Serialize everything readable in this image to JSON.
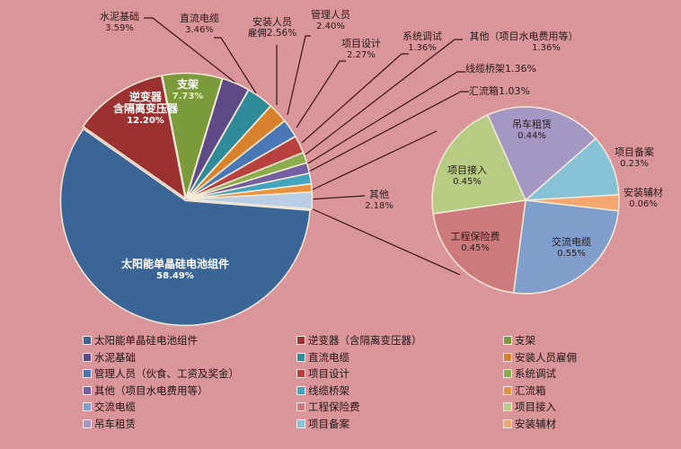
{
  "chart_data": [
    {
      "type": "pie",
      "title": "",
      "name": "main-pie",
      "slices": [
        {
          "label": "支架",
          "value": 7.73,
          "color": "#7a9a3c"
        },
        {
          "label": "水泥基础",
          "value": 3.59,
          "color": "#5e4a86"
        },
        {
          "label": "直流电缆",
          "value": 3.46,
          "color": "#2f8a9a"
        },
        {
          "label": "安装人员雇佣",
          "value": 2.56,
          "color": "#d8822e"
        },
        {
          "label": "管理人员",
          "value": 2.4,
          "color": "#4a78b6"
        },
        {
          "label": "项目设计",
          "value": 2.27,
          "color": "#b8403e"
        },
        {
          "label": "系统调试",
          "value": 1.36,
          "color": "#8cad4c"
        },
        {
          "label": "其他（项目水电费用等）",
          "value": 1.36,
          "color": "#7460a0"
        },
        {
          "label": "线缆桥架",
          "value": 1.36,
          "color": "#41a6bd"
        },
        {
          "label": "汇流箱",
          "value": 1.03,
          "color": "#e8913e"
        },
        {
          "label": "其他",
          "value": 2.18,
          "color": "#b9cde4"
        },
        {
          "label": "太阳能单晶硅电池组件",
          "value": 58.49,
          "color": "#3a6596"
        },
        {
          "label": "逆变器 含隔离变压器",
          "value": 12.2,
          "color": "#9b3231"
        }
      ]
    },
    {
      "type": "pie",
      "title": "",
      "name": "breakdown-of-other-2.18%",
      "slices": [
        {
          "label": "吊车租赁",
          "value": 0.44,
          "color": "#a597c4"
        },
        {
          "label": "项目备案",
          "value": 0.23,
          "color": "#86c2d5"
        },
        {
          "label": "安装辅材",
          "value": 0.06,
          "color": "#f4a66e"
        },
        {
          "label": "交流电缆",
          "value": 0.55,
          "color": "#7f9ecb"
        },
        {
          "label": "工程保险费",
          "value": 0.45,
          "color": "#cd7a7c"
        },
        {
          "label": "项目接入",
          "value": 0.45,
          "color": "#b5cc82"
        }
      ]
    }
  ],
  "labels": {
    "solar": {
      "name": "太阳能单晶硅电池组件",
      "pct": "58.49%"
    },
    "inverter": {
      "name1": "逆变器",
      "name2": "含隔离变压器",
      "pct": "12.20%"
    },
    "bracket": {
      "name": "支架",
      "pct": "7.73%"
    },
    "cement": {
      "name": "水泥基础",
      "pct": "3.59%"
    },
    "dc_cable": {
      "name": "直流电缆",
      "pct": "3.46%"
    },
    "install_staff": {
      "name1": "安装人员",
      "name2": "雇佣2.56%"
    },
    "mgmt": {
      "name": "管理人员",
      "pct": "2.40%"
    },
    "design": {
      "name": "项目设计",
      "pct": "2.27%"
    },
    "debug": {
      "name": "系统调试",
      "pct": "1.36%"
    },
    "other_water": {
      "name": "其他（项目水电费用等）",
      "pct": "1.36%"
    },
    "tray": {
      "name": "线缆桥架1.36%"
    },
    "combiner": {
      "name": "汇流箱1.03%"
    },
    "other": {
      "name": "其他",
      "pct": "2.18%"
    },
    "crane": {
      "name": "吊车租赁",
      "pct": "0.44%"
    },
    "filing": {
      "name": "项目备案",
      "pct": "0.23%"
    },
    "aux": {
      "name": "安装辅材",
      "pct": "0.06%"
    },
    "ac_cable": {
      "name": "交流电缆",
      "pct": "0.55%"
    },
    "insurance": {
      "name": "工程保险费",
      "pct": "0.45%"
    },
    "grid": {
      "name": "项目接入",
      "pct": "0.45%"
    }
  },
  "legend": [
    {
      "label": "太阳能单晶硅电池组件",
      "color": "#3a6596"
    },
    {
      "label": "逆变器（含隔离变压器）",
      "color": "#9b3231"
    },
    {
      "label": "支架",
      "color": "#7a9a3c"
    },
    {
      "label": "水泥基础",
      "color": "#5e4a86"
    },
    {
      "label": "直流电缆",
      "color": "#2f8a9a"
    },
    {
      "label": "安装人员雇佣",
      "color": "#d8822e"
    },
    {
      "label": "管理人员（伙食、工资及奖金）",
      "color": "#4a78b6"
    },
    {
      "label": "项目设计",
      "color": "#b8403e"
    },
    {
      "label": "系统调试",
      "color": "#8cad4c"
    },
    {
      "label": "其他（项目水电费用等）",
      "color": "#7460a0"
    },
    {
      "label": "线缆桥架",
      "color": "#41a6bd"
    },
    {
      "label": "汇流箱",
      "color": "#e8913e"
    },
    {
      "label": "交流电缆",
      "color": "#7f9ecb"
    },
    {
      "label": "工程保险费",
      "color": "#cd7a7c"
    },
    {
      "label": "项目接入",
      "color": "#b5cc82"
    },
    {
      "label": "吊车租赁",
      "color": "#a597c4"
    },
    {
      "label": "项目备案",
      "color": "#86c2d5"
    },
    {
      "label": "安装辅材",
      "color": "#f4a66e"
    }
  ],
  "colors": {
    "background": "#d9959a",
    "leader_line": "#3a1414"
  }
}
